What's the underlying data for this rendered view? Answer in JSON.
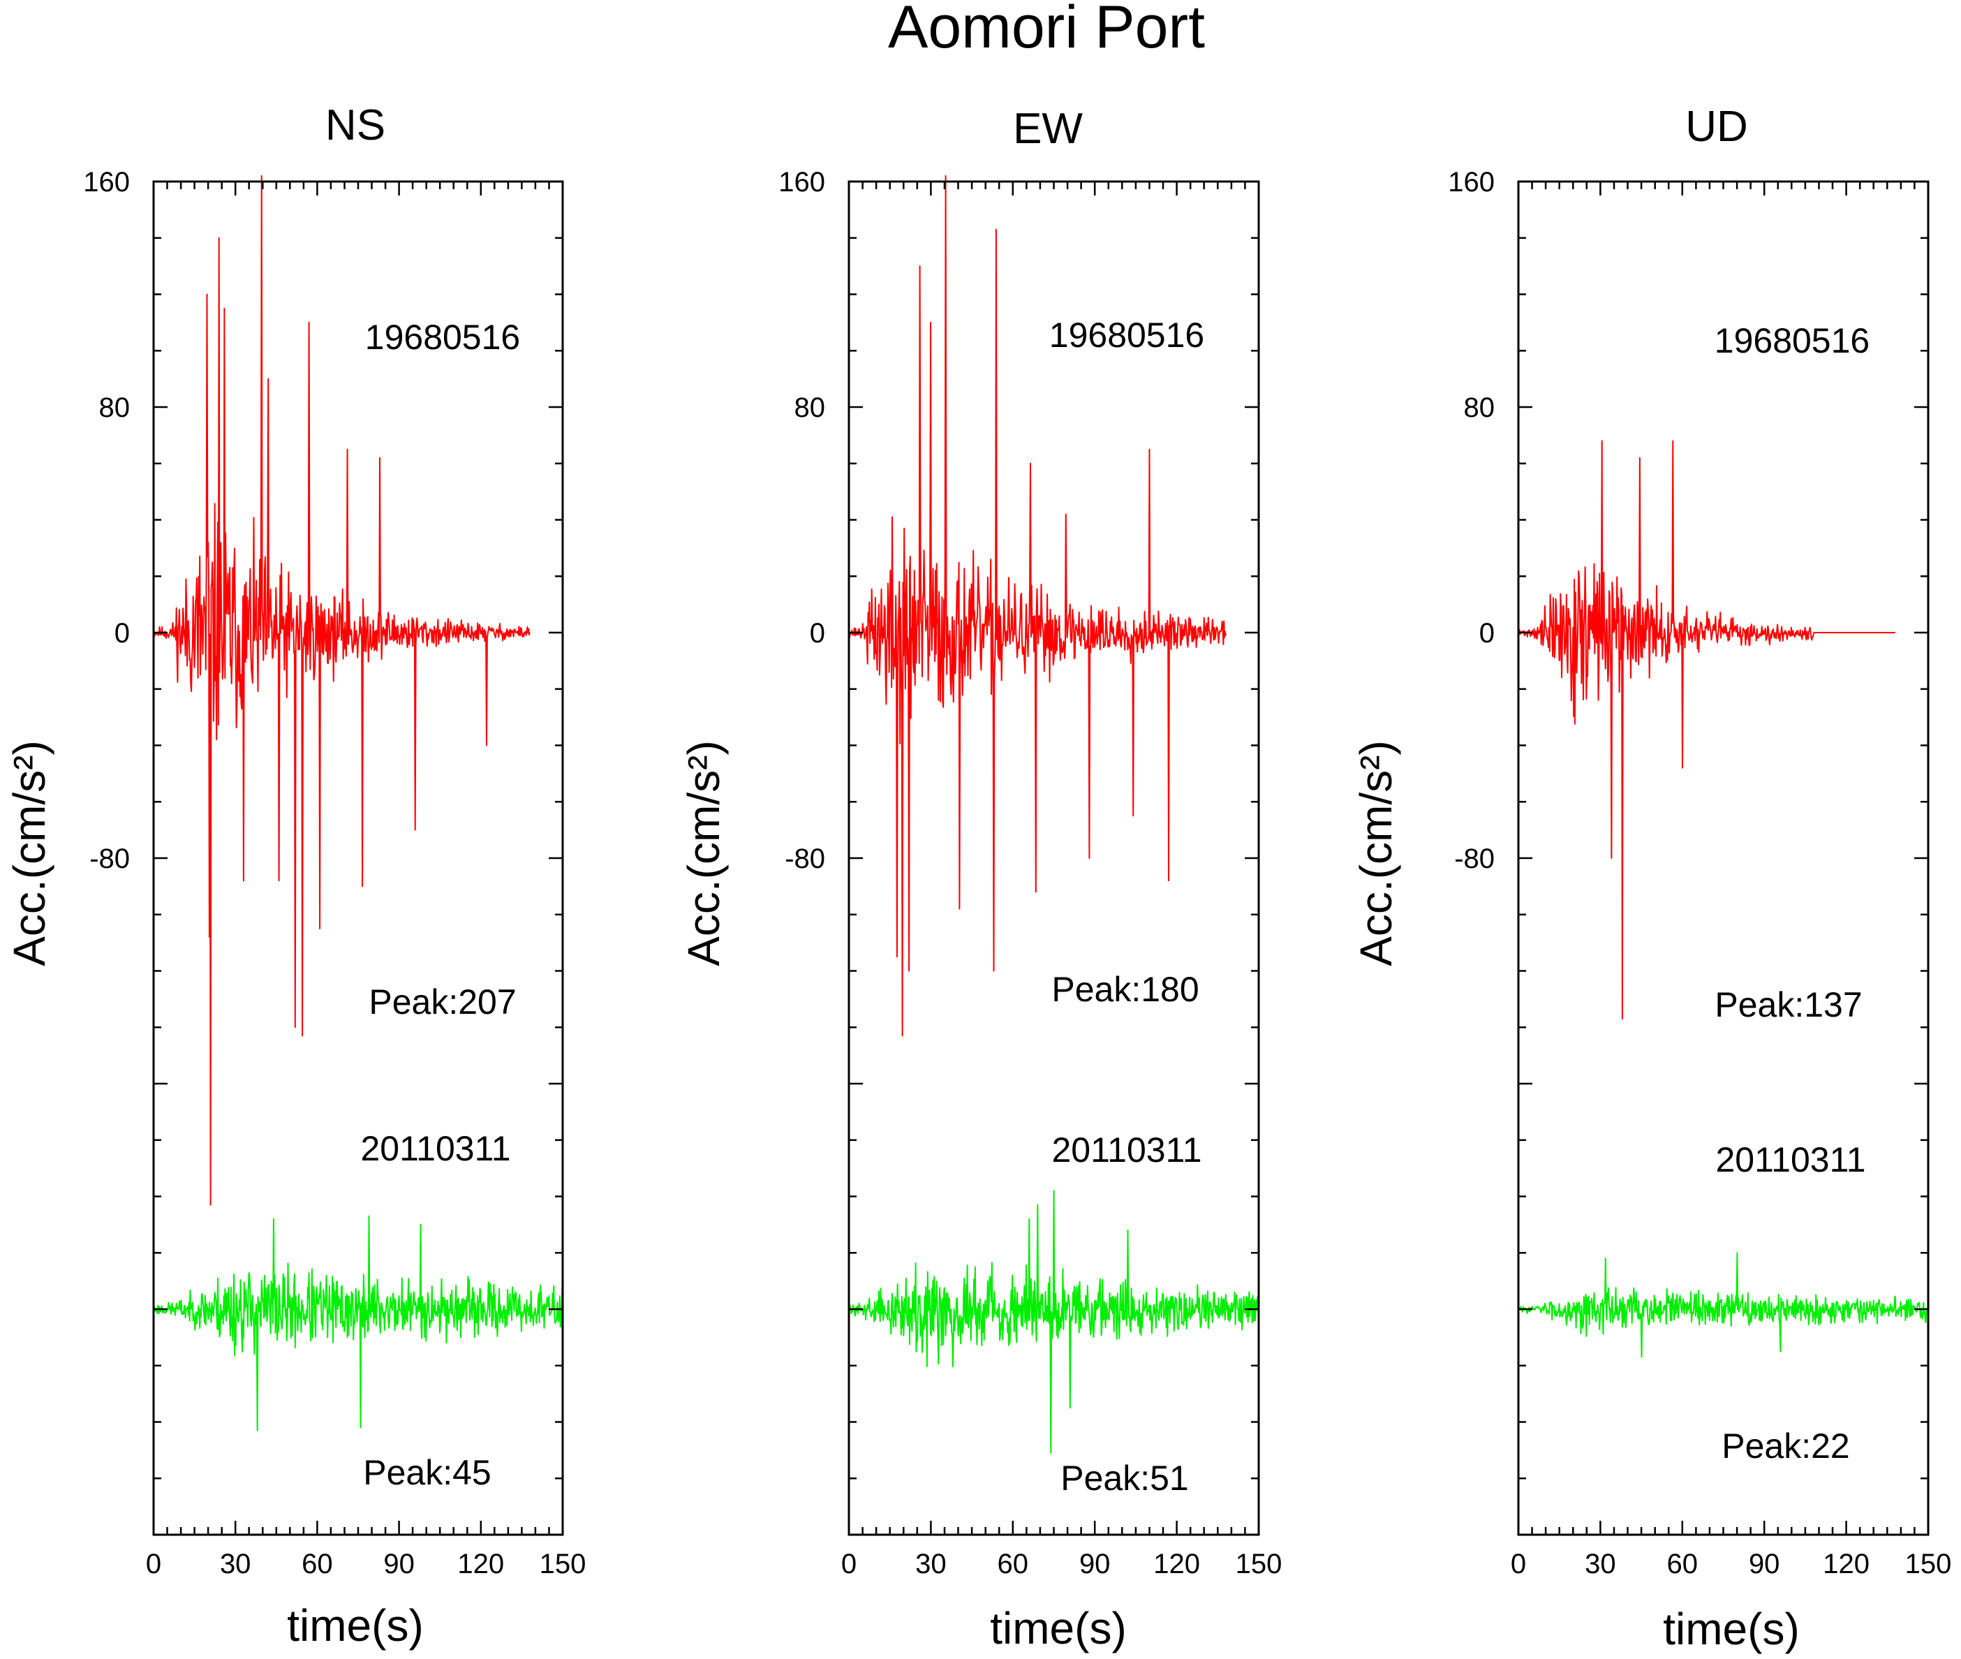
{
  "title": "Aomori Port",
  "colors": {
    "event_1968": "#ff0000",
    "event_2011": "#00ee00",
    "axis": "#000000"
  },
  "chart_data": [
    {
      "type": "line",
      "title": "NS",
      "xlabel": "time(s)",
      "ylabel": "Acc.(cm/s²)",
      "xlim": [
        0,
        150
      ],
      "ylim": [
        -320,
        160
      ],
      "xticks": [
        "0",
        "30",
        "60",
        "90",
        "120",
        "150"
      ],
      "yticks": [
        "160",
        "80",
        "0",
        "-80"
      ],
      "grid": false,
      "series": [
        {
          "name": "19680516",
          "peak_label": "Peak:207",
          "peak": 207,
          "baseline": 0,
          "duration": 138,
          "onset": 20,
          "decay": 0.026,
          "seed": 11,
          "spikes": [
            [
              19.5,
              120
            ],
            [
              20.5,
              -108
            ],
            [
              21.0,
              -203
            ],
            [
              24.0,
              140
            ],
            [
              26.0,
              115
            ],
            [
              33.0,
              -88
            ],
            [
              39.5,
              162
            ],
            [
              42.0,
              90
            ],
            [
              46.0,
              -88
            ],
            [
              52.0,
              -140
            ],
            [
              54.5,
              -143
            ],
            [
              57.0,
              110
            ],
            [
              61.0,
              -105
            ],
            [
              71.0,
              65
            ],
            [
              76.5,
              -90
            ],
            [
              83.0,
              62
            ],
            [
              96.0,
              -70
            ],
            [
              122.0,
              -40
            ]
          ]
        },
        {
          "name": "20110311",
          "peak_label": "Peak:45",
          "peak": 45,
          "baseline": -240,
          "duration": 150,
          "onset": 28,
          "decay": 0.006,
          "seed": 23,
          "spikes": [
            [
              38.0,
              -43
            ],
            [
              44.0,
              32
            ],
            [
              76.0,
              -42
            ],
            [
              79.0,
              33
            ],
            [
              98.0,
              30
            ]
          ]
        }
      ]
    },
    {
      "type": "line",
      "title": "EW",
      "xlabel": "time(s)",
      "ylabel": "Acc.(cm/s²)",
      "xlim": [
        0,
        150
      ],
      "ylim": [
        -320,
        160
      ],
      "xticks": [
        "0",
        "30",
        "60",
        "90",
        "120",
        "150"
      ],
      "yticks": [
        "160",
        "80",
        "0",
        "-80"
      ],
      "grid": false,
      "series": [
        {
          "name": "19680516",
          "peak_label": "Peak:180",
          "peak": 180,
          "baseline": 0,
          "duration": 138,
          "onset": 16,
          "decay": 0.018,
          "seed": 37,
          "spikes": [
            [
              17.5,
              -115
            ],
            [
              19.5,
              -143
            ],
            [
              22.0,
              -120
            ],
            [
              26.0,
              130
            ],
            [
              30.0,
              110
            ],
            [
              35.5,
              162
            ],
            [
              40.5,
              -98
            ],
            [
              53.0,
              -120
            ],
            [
              54.0,
              143
            ],
            [
              66.5,
              60
            ],
            [
              68.5,
              -92
            ],
            [
              79.5,
              42
            ],
            [
              88.0,
              -80
            ],
            [
              104.0,
              -65
            ],
            [
              110.0,
              65
            ],
            [
              117.0,
              -88
            ]
          ]
        },
        {
          "name": "20110311",
          "peak_label": "Peak:51",
          "peak": 51,
          "baseline": -240,
          "duration": 150,
          "onset": 25,
          "decay": 0.008,
          "seed": 59,
          "spikes": [
            [
              66.0,
              32
            ],
            [
              69.0,
              37
            ],
            [
              74.0,
              -51
            ],
            [
              75.0,
              42
            ],
            [
              81.0,
              -35
            ],
            [
              102.0,
              28
            ]
          ]
        }
      ]
    },
    {
      "type": "line",
      "title": "UD",
      "xlabel": "time(s)",
      "ylabel": "Acc.(cm/s²)",
      "xlim": [
        0,
        150
      ],
      "ylim": [
        -320,
        160
      ],
      "xticks": [
        "0",
        "30",
        "60",
        "90",
        "120",
        "150"
      ],
      "yticks": [
        "160",
        "80",
        "0",
        "-80"
      ],
      "grid": false,
      "series": [
        {
          "name": "19680516",
          "peak_label": "Peak:137",
          "peak": 137,
          "baseline": 0,
          "duration": 138,
          "signal_end": 108,
          "onset": 20,
          "decay": 0.03,
          "seed": 71,
          "spikes": [
            [
              30.5,
              68
            ],
            [
              34.0,
              -80
            ],
            [
              38.0,
              -137
            ],
            [
              44.5,
              62
            ],
            [
              56.5,
              68
            ],
            [
              60.0,
              -48
            ]
          ]
        },
        {
          "name": "20110311",
          "peak_label": "Peak:22",
          "peak": 22,
          "baseline": -240,
          "duration": 150,
          "onset": 20,
          "decay": 0.005,
          "seed": 83,
          "spikes": [
            [
              32.0,
              18
            ],
            [
              45.0,
              -17
            ],
            [
              80.0,
              20
            ],
            [
              96.0,
              -15
            ]
          ]
        }
      ]
    }
  ]
}
